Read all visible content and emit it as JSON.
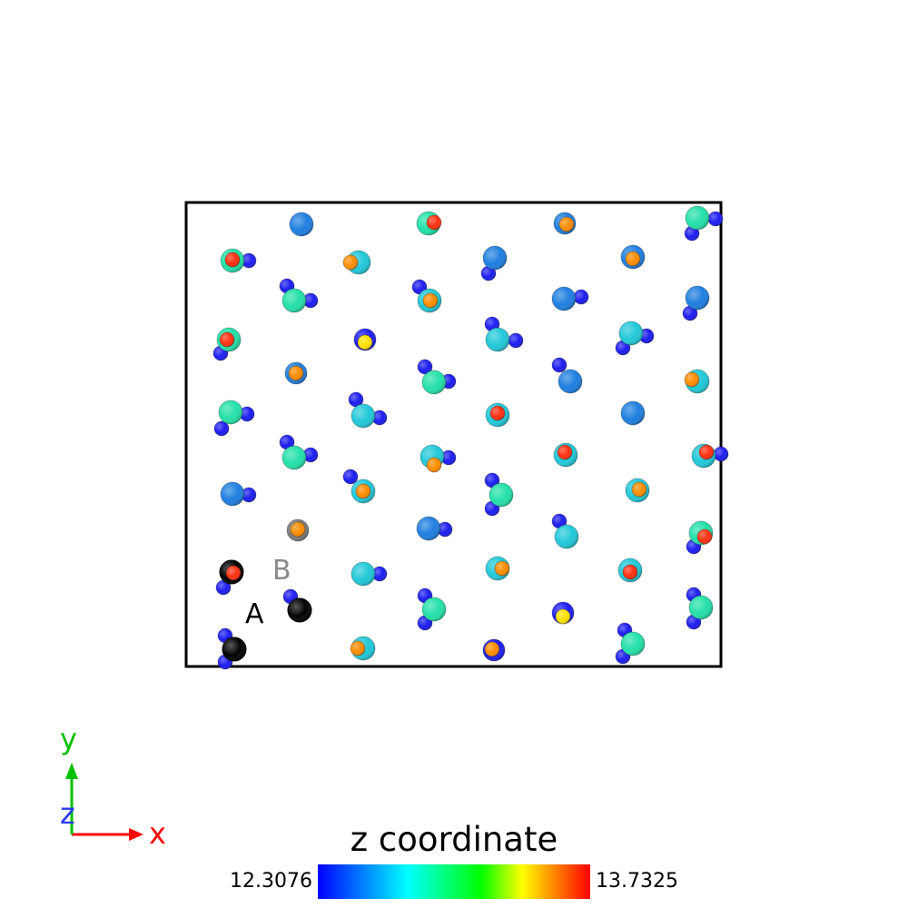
{
  "colorbar": {
    "title": "z coordinate",
    "min_label": "12.3076",
    "max_label": "13.7325",
    "min": 12.3076,
    "max": 13.7325,
    "colormap": [
      "#0000ff",
      "#00ffff",
      "#00ff00",
      "#ffff00",
      "#ff0000"
    ]
  },
  "axes": {
    "x": "x",
    "y": "y",
    "z": "z",
    "x_color": "#ff0000",
    "y_color": "#00c000",
    "z_color": "#2a3cf0"
  },
  "labels": {
    "a": "A",
    "b": "B"
  },
  "colors": {
    "frame": "#000000",
    "selected_a": "#000000",
    "selected_b": "#7a7a7a"
  }
}
